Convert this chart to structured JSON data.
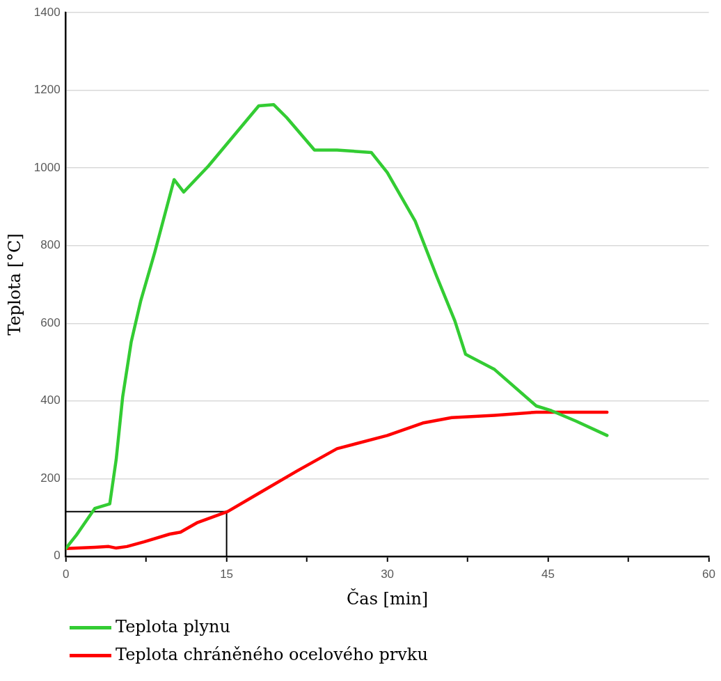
{
  "chart_data": {
    "type": "line",
    "xlabel": "Čas [min]",
    "ylabel": "Teplota [°C]",
    "xlim": [
      0,
      60
    ],
    "xticks": [
      0,
      {
        "value": 7.5,
        "label": null
      },
      15,
      {
        "value": 22.5,
        "label": null
      },
      30,
      {
        "value": 37.5,
        "label": null
      },
      45,
      {
        "value": 52.5,
        "label": null
      },
      60
    ],
    "ylim": [
      0,
      1400
    ],
    "yticks": [
      0,
      200,
      400,
      600,
      800,
      1000,
      1200,
      1400
    ],
    "grid": "y",
    "legend": "bottom",
    "marker": "none",
    "line_style": "solid",
    "series": [
      {
        "name": "Teplota plynu",
        "color": "#33cc33",
        "x": [
          0,
          1,
          2.7,
          4.1,
          4.7,
          5.3,
          6.1,
          7,
          8.3,
          10.1,
          11,
          13.3,
          18,
          19.4,
          20.6,
          23.2,
          25.3,
          28.5,
          30,
          32.6,
          34.6,
          36.3,
          37.3,
          40,
          43.9,
          45.3,
          47.6,
          50.5
        ],
        "values": [
          20,
          55,
          123,
          135,
          250,
          410,
          552,
          659,
          783,
          970,
          938,
          1005,
          1160,
          1163,
          1130,
          1046,
          1046,
          1040,
          988,
          863,
          721,
          606,
          520,
          481,
          387,
          375,
          348,
          311
        ]
      },
      {
        "name": "Teplota chráněného ocelového prvku",
        "color": "#ff0000",
        "x": [
          0,
          2.7,
          4,
          4.7,
          5.7,
          7.3,
          9.7,
          10.7,
          12.3,
          15.1,
          18,
          21.6,
          25.3,
          30,
          33.3,
          36,
          40,
          43.9,
          50.5
        ],
        "values": [
          20,
          23,
          25,
          21,
          25,
          37,
          57,
          62,
          87,
          115,
          162,
          220,
          277,
          311,
          343,
          357,
          363,
          371,
          371
        ]
      },
      {
        "color": "#000000",
        "x": [
          0,
          15,
          15
        ],
        "values": [
          115,
          115,
          0
        ]
      }
    ]
  }
}
